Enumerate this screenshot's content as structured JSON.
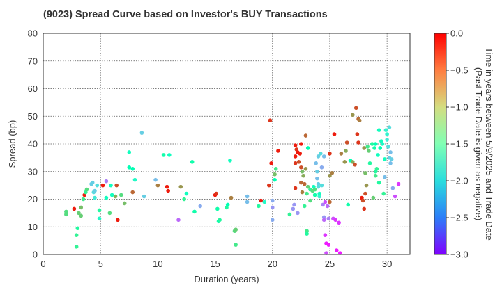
{
  "chart_data": {
    "type": "scatter",
    "title": "(9023)   Spread Curve based on Investor's BUY Transactions",
    "xlabel": "Duration (years)",
    "ylabel": "Spread (bp)",
    "xlim": [
      0,
      32
    ],
    "ylim": [
      0,
      80
    ],
    "xticks": [
      0,
      5,
      10,
      15,
      20,
      25,
      30
    ],
    "yticks": [
      0,
      10,
      20,
      30,
      40,
      50,
      60,
      70,
      80
    ],
    "grid": true,
    "colorbar": {
      "label_line1": "Time in years between 5/9/2025 and Trade Date",
      "label_line2": "(Past Trade Date is given as negative)",
      "min": -3.0,
      "max": 0.0,
      "ticks": [
        0.0,
        -0.5,
        -1.0,
        -1.5,
        -2.0,
        -2.5,
        -3.0
      ],
      "colormap": "rainbow"
    },
    "points": [
      [
        2.0,
        15.5,
        -1.0
      ],
      [
        2.0,
        14.5,
        -1.0
      ],
      [
        2.7,
        16.5,
        -0.1
      ],
      [
        2.9,
        2.8,
        -1.2
      ],
      [
        2.9,
        7.0,
        -1.2
      ],
      [
        3.0,
        9.5,
        -1.3
      ],
      [
        3.1,
        15.0,
        -0.9
      ],
      [
        3.3,
        14.0,
        -0.9
      ],
      [
        3.3,
        17.0,
        -0.8
      ],
      [
        3.5,
        20.0,
        -1.1
      ],
      [
        3.6,
        21.5,
        -0.1
      ],
      [
        3.7,
        22.5,
        -1.2
      ],
      [
        3.8,
        23.5,
        -1.0
      ],
      [
        4.2,
        25.5,
        -2.1
      ],
      [
        4.3,
        26.0,
        -2.1
      ],
      [
        4.4,
        22.5,
        -2.0
      ],
      [
        4.5,
        23.0,
        -2.1
      ],
      [
        4.5,
        20.5,
        -1.9
      ],
      [
        4.7,
        25.0,
        -2.0
      ],
      [
        4.9,
        16.0,
        -1.3
      ],
      [
        4.9,
        13.0,
        -1.7
      ],
      [
        5.2,
        25.0,
        -0.1
      ],
      [
        5.5,
        20.5,
        -1.6
      ],
      [
        5.5,
        26.5,
        -2.5
      ],
      [
        5.8,
        15.0,
        -1.0
      ],
      [
        5.9,
        25.0,
        -1.6
      ],
      [
        6.0,
        21.5,
        -1.6
      ],
      [
        6.3,
        21.0,
        -0.7
      ],
      [
        6.4,
        25.0,
        -0.3
      ],
      [
        6.5,
        12.5,
        -0.1
      ],
      [
        6.8,
        21.5,
        -1.0
      ],
      [
        7.1,
        18.5,
        -0.8
      ],
      [
        7.5,
        31.5,
        -1.5
      ],
      [
        7.5,
        37.0,
        -1.6
      ],
      [
        7.8,
        22.5,
        -0.4
      ],
      [
        7.8,
        31.0,
        -1.5
      ],
      [
        8.0,
        27.0,
        -1.7
      ],
      [
        8.6,
        44.0,
        -2.1
      ],
      [
        8.8,
        21.0,
        -2.1
      ],
      [
        9.8,
        27.0,
        -2.2
      ],
      [
        10.0,
        25.0,
        -0.5
      ],
      [
        10.5,
        36.0,
        -1.4
      ],
      [
        10.8,
        24.5,
        -0.1
      ],
      [
        10.9,
        23.0,
        -0.1
      ],
      [
        11.0,
        36.0,
        -1.6
      ],
      [
        11.8,
        12.5,
        -2.6
      ],
      [
        12.0,
        24.5,
        -0.6
      ],
      [
        12.3,
        20.0,
        -1.2
      ],
      [
        12.5,
        22.0,
        -1.6
      ],
      [
        13.0,
        33.5,
        -1.4
      ],
      [
        13.2,
        15.5,
        -1.4
      ],
      [
        13.7,
        17.5,
        -2.3
      ],
      [
        15.0,
        21.5,
        -0.1
      ],
      [
        15.1,
        22.0,
        -0.2
      ],
      [
        15.2,
        16.5,
        -1.4
      ],
      [
        15.3,
        12.0,
        -1.4
      ],
      [
        15.4,
        12.5,
        -1.3
      ],
      [
        16.0,
        17.0,
        -1.3
      ],
      [
        16.1,
        18.0,
        -1.5
      ],
      [
        16.3,
        34.0,
        -1.6
      ],
      [
        16.4,
        20.5,
        -0.5
      ],
      [
        16.7,
        8.5,
        -1.0
      ],
      [
        16.8,
        3.5,
        -1.1
      ],
      [
        16.8,
        9.0,
        -0.9
      ],
      [
        17.8,
        21.0,
        -2.2
      ],
      [
        17.8,
        19.0,
        -2.2
      ],
      [
        18.8,
        17.5,
        -1.3
      ],
      [
        19.0,
        19.5,
        -0.1
      ],
      [
        19.3,
        19.0,
        -1.7
      ],
      [
        19.7,
        25.0,
        -0.2
      ],
      [
        19.8,
        48.5,
        -0.2
      ],
      [
        19.9,
        33.0,
        -0.1
      ],
      [
        20.0,
        17.0,
        -2.4
      ],
      [
        20.0,
        19.5,
        -2.3
      ],
      [
        20.0,
        12.5,
        -2.3
      ],
      [
        20.2,
        29.0,
        -0.8
      ],
      [
        20.3,
        31.0,
        -1.1
      ],
      [
        20.2,
        27.0,
        -1.5
      ],
      [
        20.5,
        37.5,
        -0.1
      ],
      [
        21.5,
        14.5,
        -1.2
      ],
      [
        21.8,
        16.5,
        -2.4
      ],
      [
        21.9,
        18.0,
        -2.4
      ],
      [
        22.0,
        39.5,
        -0.1
      ],
      [
        22.0,
        35.5,
        -0.1
      ],
      [
        22.0,
        33.0,
        -0.2
      ],
      [
        22.0,
        24.0,
        -0.2
      ],
      [
        22.1,
        38.0,
        -0.2
      ],
      [
        22.2,
        37.0,
        -0.1
      ],
      [
        22.2,
        15.0,
        -2.4
      ],
      [
        22.3,
        33.5,
        -0.3
      ],
      [
        22.4,
        36.5,
        -0.1
      ],
      [
        22.5,
        31.5,
        -0.3
      ],
      [
        22.5,
        26.0,
        -0.4
      ],
      [
        22.5,
        40.0,
        -0.1
      ],
      [
        22.6,
        22.5,
        -0.5
      ],
      [
        22.6,
        30.0,
        -0.8
      ],
      [
        22.7,
        28.5,
        -0.7
      ],
      [
        22.8,
        25.5,
        -0.4
      ],
      [
        22.8,
        17.5,
        -1.2
      ],
      [
        22.9,
        43.0,
        -0.4
      ],
      [
        22.9,
        31.0,
        -0.6
      ],
      [
        23.0,
        22.0,
        -1.1
      ],
      [
        23.0,
        8.5,
        -1.1
      ],
      [
        23.0,
        7.5,
        -1.3
      ],
      [
        23.1,
        38.5,
        -1.5
      ],
      [
        23.1,
        24.5,
        -0.9
      ],
      [
        23.3,
        23.5,
        -1.2
      ],
      [
        23.3,
        19.5,
        -1.0
      ],
      [
        23.5,
        23.0,
        -1.0
      ],
      [
        23.6,
        24.5,
        -1.6
      ],
      [
        23.7,
        21.5,
        -1.4
      ],
      [
        23.7,
        23.5,
        -1.0
      ],
      [
        23.8,
        33.0,
        -2.2
      ],
      [
        23.9,
        30.0,
        -2.1
      ],
      [
        23.9,
        27.5,
        -2.2
      ],
      [
        24.0,
        35.5,
        -2.1
      ],
      [
        24.0,
        25.5,
        -2.1
      ],
      [
        24.0,
        24.5,
        -2.0
      ],
      [
        24.1,
        22.0,
        -1.6
      ],
      [
        24.1,
        21.0,
        -1.8
      ],
      [
        24.2,
        36.5,
        -2.0
      ],
      [
        24.3,
        25.0,
        -2.0
      ],
      [
        24.3,
        31.5,
        -2.3
      ],
      [
        24.4,
        18.0,
        -2.5
      ],
      [
        24.5,
        35.5,
        -2.2
      ],
      [
        24.5,
        13.5,
        -2.4
      ],
      [
        24.5,
        12.5,
        -2.6
      ],
      [
        24.6,
        19.0,
        -2.7
      ],
      [
        24.6,
        7.0,
        -2.8
      ],
      [
        24.7,
        4.0,
        -2.9
      ],
      [
        24.7,
        0.5,
        -2.7
      ],
      [
        24.8,
        17.5,
        -2.6
      ],
      [
        24.9,
        13.0,
        -2.5
      ],
      [
        24.9,
        3.5,
        -2.9
      ],
      [
        25.0,
        36.5,
        -0.2
      ],
      [
        25.0,
        19.0,
        -0.4
      ],
      [
        25.0,
        28.5,
        -0.6
      ],
      [
        25.2,
        29.5,
        -0.5
      ],
      [
        25.3,
        13.0,
        -2.7
      ],
      [
        25.4,
        43.5,
        -0.1
      ],
      [
        25.5,
        12.5,
        -2.8
      ],
      [
        25.6,
        1.5,
        -2.9
      ],
      [
        25.8,
        11.5,
        -2.8
      ],
      [
        25.9,
        0.5,
        -2.9
      ],
      [
        26.0,
        36.5,
        -0.5
      ],
      [
        26.3,
        33.5,
        -0.6
      ],
      [
        26.4,
        37.5,
        -0.7
      ],
      [
        26.5,
        40.5,
        -0.3
      ],
      [
        26.6,
        18.0,
        -1.4
      ],
      [
        26.8,
        34.0,
        -1.5
      ],
      [
        27.0,
        50.5,
        -0.6
      ],
      [
        27.0,
        33.5,
        -0.7
      ],
      [
        27.2,
        32.5,
        -0.3
      ],
      [
        27.3,
        53.0,
        -0.3
      ],
      [
        27.4,
        43.5,
        -0.2
      ],
      [
        27.5,
        49.0,
        -0.4
      ],
      [
        27.5,
        40.5,
        -0.2
      ],
      [
        27.6,
        48.5,
        -0.5
      ],
      [
        27.8,
        20.5,
        -0.1
      ],
      [
        27.9,
        19.5,
        -0.3
      ],
      [
        28.0,
        38.5,
        -0.6
      ],
      [
        28.0,
        16.5,
        -0.2
      ],
      [
        28.1,
        29.5,
        -0.8
      ],
      [
        28.1,
        22.0,
        -0.3
      ],
      [
        28.2,
        25.0,
        -0.6
      ],
      [
        28.3,
        39.0,
        -1.1
      ],
      [
        28.4,
        37.5,
        -0.9
      ],
      [
        28.5,
        33.0,
        -1.3
      ],
      [
        28.7,
        40.0,
        -1.3
      ],
      [
        28.8,
        20.5,
        -0.9
      ],
      [
        28.9,
        38.5,
        -1.4
      ],
      [
        29.0,
        40.0,
        -1.5
      ],
      [
        29.0,
        30.0,
        -1.3
      ],
      [
        29.0,
        28.5,
        -1.1
      ],
      [
        29.1,
        31.0,
        -1.2
      ],
      [
        29.2,
        36.0,
        -1.6
      ],
      [
        29.3,
        45.0,
        -1.6
      ],
      [
        29.3,
        26.0,
        -1.3
      ],
      [
        29.4,
        38.5,
        -1.5
      ],
      [
        29.5,
        41.0,
        -1.6
      ],
      [
        29.6,
        40.0,
        -1.7
      ],
      [
        29.7,
        22.0,
        -1.2
      ],
      [
        29.8,
        34.5,
        -1.6
      ],
      [
        29.8,
        28.0,
        -2.2
      ],
      [
        29.9,
        45.0,
        -1.8
      ],
      [
        30.0,
        41.5,
        -1.9
      ],
      [
        30.0,
        43.5,
        -1.8
      ],
      [
        30.1,
        39.0,
        -2.0
      ],
      [
        30.2,
        46.0,
        -2.0
      ],
      [
        30.2,
        35.0,
        -2.1
      ],
      [
        30.3,
        33.0,
        -2.2
      ],
      [
        30.3,
        37.0,
        -2.2
      ],
      [
        30.4,
        34.5,
        -2.1
      ],
      [
        30.5,
        24.0,
        -2.3
      ],
      [
        30.7,
        21.0,
        -2.7
      ],
      [
        31.0,
        25.5,
        -2.8
      ]
    ]
  }
}
